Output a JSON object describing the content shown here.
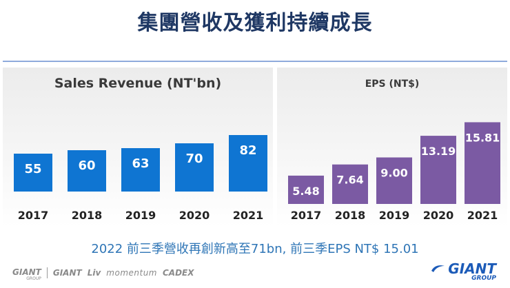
{
  "page": {
    "title": "集團營收及獲利持續成長",
    "subtitle": "2022 前三季營收再創新高至71bn, 前三季EPS NT$ 15.01"
  },
  "footer": {
    "brands": [
      "GIANT",
      "GIANT",
      "Liv",
      "momentum",
      "CADEX"
    ],
    "brand_group_label": "GROUP",
    "logo_text": "GIANT",
    "logo_group": "GROUP"
  },
  "colors": {
    "sales_bar": "#0f75d2",
    "eps_bar": "#7b5aa3",
    "title": "#1f3864",
    "subtitle": "#2e75b6"
  },
  "chart_data": [
    {
      "id": "sales",
      "type": "bar",
      "title": "Sales Revenue (NT'bn)",
      "categories": [
        "2017",
        "2018",
        "2019",
        "2020",
        "2021"
      ],
      "values": [
        55,
        60,
        63,
        70,
        82
      ],
      "value_labels": [
        "55",
        "60",
        "63",
        "70",
        "82"
      ],
      "xlabel": "",
      "ylabel": "",
      "ylim": [
        0,
        100
      ],
      "grid": false,
      "color": "#0f75d2"
    },
    {
      "id": "eps",
      "type": "bar",
      "title": "EPS (NT$)",
      "categories": [
        "2017",
        "2018",
        "2019",
        "2020",
        "2021"
      ],
      "values": [
        5.48,
        7.64,
        9.0,
        13.19,
        15.81
      ],
      "value_labels": [
        "5.48",
        "7.64",
        "9.00",
        "13.19",
        "15.81"
      ],
      "xlabel": "",
      "ylabel": "",
      "ylim": [
        0,
        22
      ],
      "grid": false,
      "color": "#7b5aa3"
    }
  ]
}
